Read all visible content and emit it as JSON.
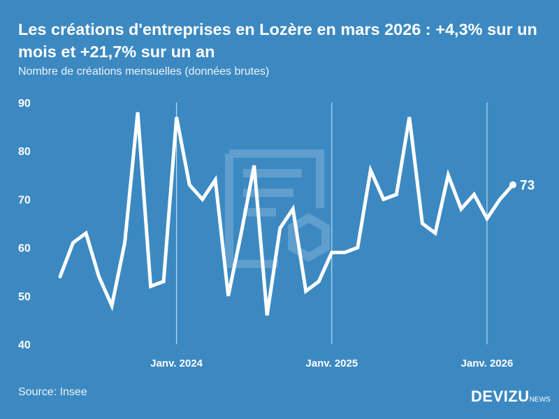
{
  "title": "Les créations d'entreprises en Lozère en mars 2026 : +4,3% sur un mois et +21,7% sur un an",
  "subtitle": "Nombre de créations mensuelles (données brutes)",
  "source": "Source: Insee",
  "logo": {
    "main": "DEVIZU",
    "suffix": "NEWS"
  },
  "colors": {
    "background": "#3c89c2",
    "line": "#ffffff"
  },
  "chart_data": {
    "type": "line",
    "title": "Les créations d'entreprises en Lozère en mars 2026 : +4,3% sur un mois et +21,7% sur un an",
    "ylim": [
      40,
      90
    ],
    "y_ticks": [
      "40",
      "50",
      "60",
      "70",
      "80",
      "90"
    ],
    "x_ticks": [
      {
        "label": "Janv. 2024",
        "x": "2024-01"
      },
      {
        "label": "Janv. 2025",
        "x": "2025-01"
      },
      {
        "label": "Janv. 2026",
        "x": "2026-01"
      }
    ],
    "x": [
      "2023-04",
      "2023-05",
      "2023-06",
      "2023-07",
      "2023-08",
      "2023-09",
      "2023-10",
      "2023-11",
      "2023-12",
      "2024-01",
      "2024-02",
      "2024-03",
      "2024-04",
      "2024-05",
      "2024-06",
      "2024-07",
      "2024-08",
      "2024-09",
      "2024-10",
      "2024-11",
      "2024-12",
      "2025-01",
      "2025-02",
      "2025-03",
      "2025-04",
      "2025-05",
      "2025-06",
      "2025-07",
      "2025-08",
      "2025-09",
      "2025-10",
      "2025-11",
      "2025-12",
      "2026-01",
      "2026-02",
      "2026-03"
    ],
    "values": [
      54,
      61,
      63,
      54,
      48,
      61,
      88,
      52,
      53,
      87,
      73,
      70,
      74,
      50,
      63,
      77,
      46,
      64,
      68,
      51,
      53,
      59,
      59,
      60,
      76,
      70,
      71,
      87,
      65,
      63,
      75,
      68,
      71,
      66,
      70,
      73
    ],
    "last_label": "73",
    "grid": "vertical lines at January"
  }
}
